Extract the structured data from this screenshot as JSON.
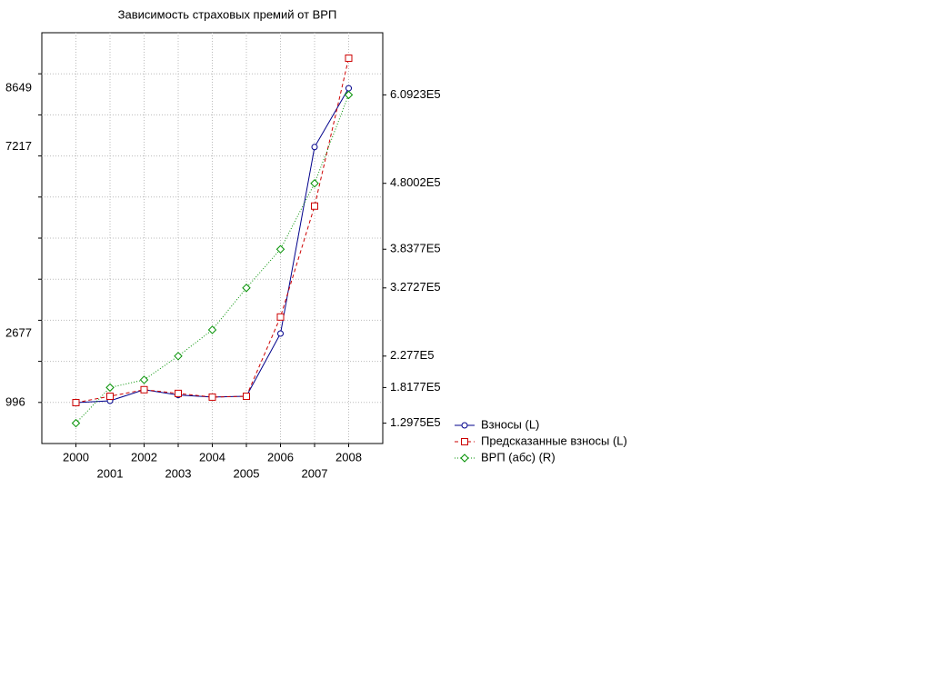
{
  "chart_data": {
    "type": "line",
    "title": "Зависимость страховых премий от ВРП",
    "x": [
      2000,
      2001,
      2002,
      2003,
      2004,
      2005,
      2006,
      2007,
      2008
    ],
    "xlim": [
      1999,
      2009
    ],
    "xticks": [
      2000,
      2001,
      2002,
      2003,
      2004,
      2005,
      2006,
      2007,
      2008
    ],
    "ylim": [
      0,
      10000
    ],
    "yticks": [
      996,
      2677,
      7217,
      8649
    ],
    "ygrid": [
      1000,
      2000,
      3000,
      4000,
      5000,
      6000,
      7000,
      8000,
      9000
    ],
    "y2lim": [
      100000,
      700000
    ],
    "y2ticks": [
      {
        "value": 129750,
        "label": "1.2975E5"
      },
      {
        "value": 181770,
        "label": "1.8177E5"
      },
      {
        "value": 227700,
        "label": "2.277E5"
      },
      {
        "value": 327270,
        "label": "3.2727E5"
      },
      {
        "value": 383770,
        "label": "3.8377E5"
      },
      {
        "value": 480020,
        "label": "4.8002E5"
      },
      {
        "value": 609230,
        "label": "6.0923E5"
      }
    ],
    "grid": true,
    "legend": "right",
    "series": [
      {
        "name": "Взносы (L)",
        "color": "#00008b",
        "marker": "circle",
        "dash": "solid",
        "values": [
          996,
          1040,
          1310,
          1180,
          1130,
          1150,
          2677,
          7217,
          8649
        ]
      },
      {
        "name": "Предсказанные взносы (L)",
        "color": "#cc0000",
        "marker": "square",
        "dash": "dashed",
        "values": [
          996,
          1150,
          1310,
          1220,
          1130,
          1150,
          3080,
          5780,
          9380
        ]
      },
      {
        "name": "ВРП (абс) (R)",
        "color": "#009000",
        "marker": "diamond",
        "dash": "dotted",
        "axis": "y2",
        "values": [
          129750,
          181770,
          193000,
          227700,
          266000,
          327270,
          383770,
          480020,
          609230
        ]
      }
    ]
  }
}
